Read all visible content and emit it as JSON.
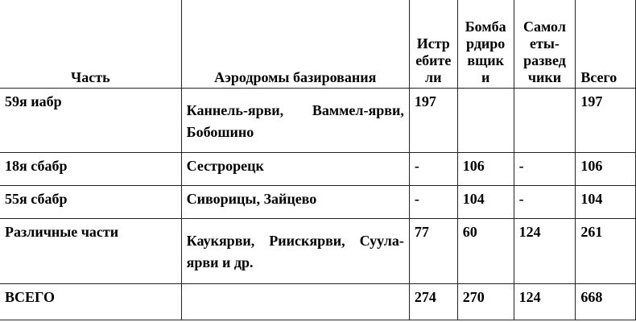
{
  "headers": {
    "unit": "Часть",
    "airfields": "Аэродромы базирования",
    "fighters": "Истр\nебите\nли",
    "bombers": "Бомба\nрдиро\nвщик\nи",
    "recon": "Самол\nеты-\nразвед\nчики",
    "total": "Всего"
  },
  "rows": [
    {
      "unit": "59я иабр",
      "airfields": "Каннель-ярви, Ваммел-ярви, Бобошино",
      "fighters": "197",
      "bombers": "",
      "recon": "",
      "total": "197"
    },
    {
      "unit": "18я сбабр",
      "airfields": "Сестрорецк",
      "fighters": "-",
      "bombers": "106",
      "recon": "-",
      "total": "106"
    },
    {
      "unit": "55я сбабр",
      "airfields": "Сиворицы, Зайцево",
      "fighters": "-",
      "bombers": "104",
      "recon": "-",
      "total": "104"
    },
    {
      "unit": "Различные части",
      "airfields": "Каукярви, Риискярви, Суула-ярви и др.",
      "fighters": "77",
      "bombers": "60",
      "recon": "124",
      "total": "261"
    },
    {
      "unit": "ВСЕГО",
      "airfields": "",
      "fighters": "274",
      "bombers": "270",
      "recon": "124",
      "total": "668"
    }
  ]
}
